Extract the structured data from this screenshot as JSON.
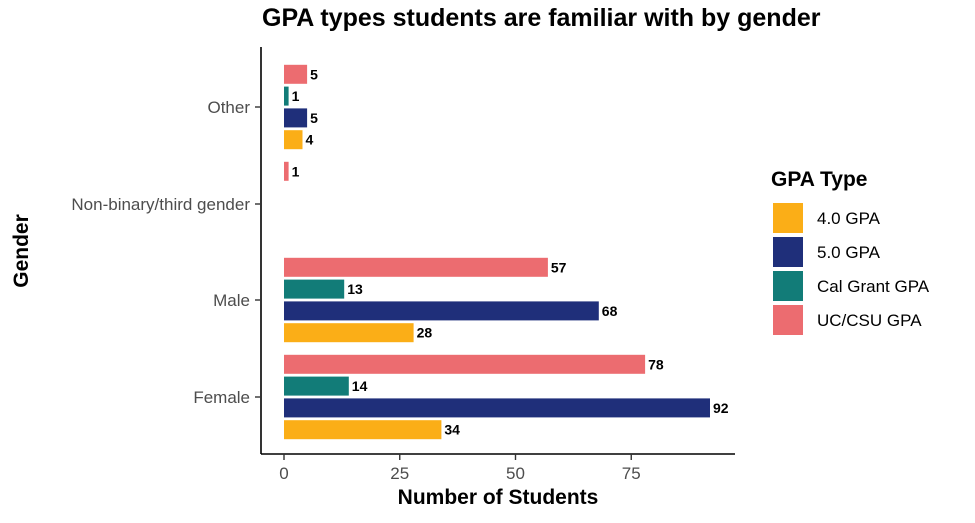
{
  "chart_data": {
    "type": "bar",
    "orientation": "horizontal",
    "title": "GPA types students are familiar with by gender",
    "xlabel": "Number of Students",
    "ylabel": "Gender",
    "xlim": [
      0,
      95
    ],
    "x_ticks": [
      "0",
      "25",
      "50",
      "75"
    ],
    "categories": [
      "Other",
      "Non-binary/third gender",
      "Male",
      "Female"
    ],
    "legend_title": "GPA Type",
    "legend_position": "right",
    "grid": false,
    "series": [
      {
        "name": "4.0 GPA",
        "color": "#FBAE17",
        "values": [
          4,
          null,
          28,
          34
        ]
      },
      {
        "name": "5.0 GPA",
        "color": "#1F2F7A",
        "values": [
          5,
          null,
          68,
          92
        ]
      },
      {
        "name": "Cal Grant GPA",
        "color": "#127C78",
        "values": [
          1,
          null,
          13,
          14
        ]
      },
      {
        "name": "UC/CSU GPA",
        "color": "#EC6C70",
        "values": [
          5,
          1,
          57,
          78
        ]
      }
    ]
  }
}
